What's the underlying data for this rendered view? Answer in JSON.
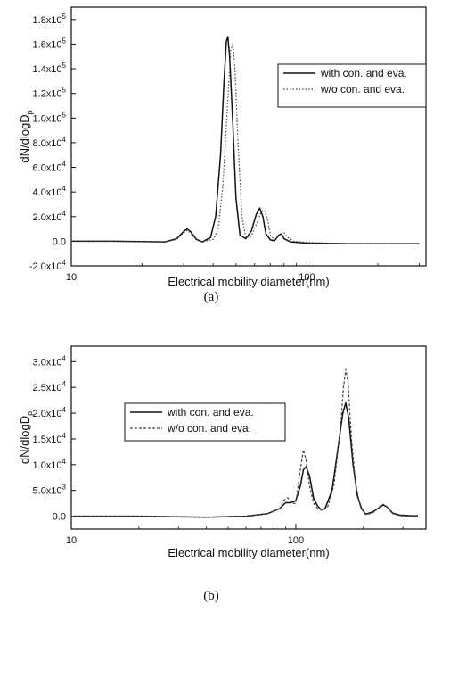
{
  "chart_data": [
    {
      "type": "line",
      "caption": "(a)",
      "xlabel": "Electrical mobility diameter(nm)",
      "ylabel": "dN/dlogD",
      "ylabel_sub": "p",
      "xscale": "log",
      "xlim": [
        10,
        320
      ],
      "ylim": [
        -20000,
        190000
      ],
      "xticks": [
        {
          "value": 10,
          "label": "10"
        },
        {
          "value": 100,
          "label": "100"
        }
      ],
      "yticks": [
        {
          "value": -20000,
          "label": "-2.0x10",
          "exp": "4"
        },
        {
          "value": 0,
          "label": "0.0",
          "exp": ""
        },
        {
          "value": 20000,
          "label": "2.0x10",
          "exp": "4"
        },
        {
          "value": 40000,
          "label": "4.0x10",
          "exp": "4"
        },
        {
          "value": 60000,
          "label": "6.0x10",
          "exp": "4"
        },
        {
          "value": 80000,
          "label": "8.0x10",
          "exp": "4"
        },
        {
          "value": 100000,
          "label": "1.0x10",
          "exp": "5"
        },
        {
          "value": 120000,
          "label": "1.2x10",
          "exp": "5"
        },
        {
          "value": 140000,
          "label": "1.4x10",
          "exp": "5"
        },
        {
          "value": 160000,
          "label": "1.6x10",
          "exp": "5"
        },
        {
          "value": 180000,
          "label": "1.8x10",
          "exp": "5"
        }
      ],
      "legend_position": "upper-right",
      "series": [
        {
          "name": "with con. and eva.",
          "style": "solid",
          "color": "#111111",
          "points": [
            [
              10,
              0
            ],
            [
              15,
              0
            ],
            [
              20,
              -300
            ],
            [
              25,
              -500
            ],
            [
              28,
              2000
            ],
            [
              30,
              8000
            ],
            [
              31,
              10000
            ],
            [
              32,
              8000
            ],
            [
              34,
              1500
            ],
            [
              36,
              -500
            ],
            [
              39,
              3000
            ],
            [
              41,
              20000
            ],
            [
              43,
              70000
            ],
            [
              44.5,
              130000
            ],
            [
              45.5,
              162000
            ],
            [
              46.2,
              166000
            ],
            [
              47,
              150000
            ],
            [
              48.5,
              95000
            ],
            [
              50,
              35000
            ],
            [
              52,
              5000
            ],
            [
              55,
              2000
            ],
            [
              58,
              8000
            ],
            [
              61,
              22000
            ],
            [
              63,
              27000
            ],
            [
              65,
              20000
            ],
            [
              67,
              6000
            ],
            [
              70,
              1000
            ],
            [
              73,
              500
            ],
            [
              76,
              5000
            ],
            [
              78,
              6000
            ],
            [
              80,
              2000
            ],
            [
              85,
              -500
            ],
            [
              100,
              -1500
            ],
            [
              150,
              -2000
            ],
            [
              200,
              -2000
            ],
            [
              300,
              -2000
            ]
          ]
        },
        {
          "name": "w/o con. and eva.",
          "style": "dotted",
          "color": "#444444",
          "points": [
            [
              10,
              0
            ],
            [
              15,
              0
            ],
            [
              20,
              -300
            ],
            [
              25,
              -500
            ],
            [
              28,
              1500
            ],
            [
              30,
              7000
            ],
            [
              31,
              9000
            ],
            [
              32,
              7000
            ],
            [
              34,
              1000
            ],
            [
              36,
              -500
            ],
            [
              40,
              1500
            ],
            [
              42,
              10000
            ],
            [
              44,
              45000
            ],
            [
              46,
              110000
            ],
            [
              47.5,
              155000
            ],
            [
              48.5,
              160000
            ],
            [
              49.5,
              140000
            ],
            [
              51,
              80000
            ],
            [
              53,
              20000
            ],
            [
              55,
              3000
            ],
            [
              58,
              4000
            ],
            [
              61,
              14000
            ],
            [
              64,
              24000
            ],
            [
              66,
              25000
            ],
            [
              68,
              18000
            ],
            [
              70,
              5000
            ],
            [
              73,
              1000
            ],
            [
              77,
              5000
            ],
            [
              80,
              7000
            ],
            [
              83,
              3000
            ],
            [
              88,
              0
            ],
            [
              100,
              -1000
            ],
            [
              150,
              -2000
            ],
            [
              200,
              -2000
            ],
            [
              300,
              -2000
            ]
          ]
        }
      ]
    },
    {
      "type": "line",
      "caption": "(b)",
      "xlabel": "Electrical mobility diameter(nm)",
      "ylabel": "dN/dlogD",
      "ylabel_sub": "p",
      "xscale": "log",
      "xlim": [
        10,
        380
      ],
      "ylim": [
        -2500,
        33000
      ],
      "xticks": [
        {
          "value": 10,
          "label": "10"
        },
        {
          "value": 100,
          "label": "100"
        }
      ],
      "yticks": [
        {
          "value": 0,
          "label": "0.0",
          "exp": ""
        },
        {
          "value": 5000,
          "label": "5.0x10",
          "exp": "3"
        },
        {
          "value": 10000,
          "label": "1.0x10",
          "exp": "4"
        },
        {
          "value": 15000,
          "label": "1.5x10",
          "exp": "4"
        },
        {
          "value": 20000,
          "label": "2.0x10",
          "exp": "4"
        },
        {
          "value": 25000,
          "label": "2.5x10",
          "exp": "4"
        },
        {
          "value": 30000,
          "label": "3.0x10",
          "exp": "4"
        }
      ],
      "legend_position": "upper-left",
      "series": [
        {
          "name": "with con. and eva.",
          "style": "solid",
          "color": "#111111",
          "points": [
            [
              10,
              0
            ],
            [
              20,
              0
            ],
            [
              40,
              -200
            ],
            [
              60,
              0
            ],
            [
              75,
              500
            ],
            [
              85,
              1500
            ],
            [
              90,
              2600
            ],
            [
              95,
              2600
            ],
            [
              100,
              3000
            ],
            [
              105,
              6000
            ],
            [
              108,
              9000
            ],
            [
              111,
              9600
            ],
            [
              115,
              8000
            ],
            [
              120,
              3500
            ],
            [
              125,
              2000
            ],
            [
              130,
              1200
            ],
            [
              135,
              1500
            ],
            [
              145,
              5000
            ],
            [
              155,
              14000
            ],
            [
              162,
              20000
            ],
            [
              167,
              22000
            ],
            [
              172,
              19000
            ],
            [
              180,
              10000
            ],
            [
              188,
              4000
            ],
            [
              196,
              1500
            ],
            [
              205,
              400
            ],
            [
              220,
              800
            ],
            [
              235,
              1600
            ],
            [
              245,
              2200
            ],
            [
              255,
              1800
            ],
            [
              270,
              600
            ],
            [
              290,
              200
            ],
            [
              320,
              100
            ],
            [
              350,
              50
            ]
          ]
        },
        {
          "name": "w/o con. and eva.",
          "style": "dashed",
          "color": "#444444",
          "points": [
            [
              10,
              0
            ],
            [
              20,
              0
            ],
            [
              40,
              -200
            ],
            [
              60,
              0
            ],
            [
              75,
              500
            ],
            [
              85,
              1500
            ],
            [
              88,
              3000
            ],
            [
              92,
              3600
            ],
            [
              96,
              2500
            ],
            [
              100,
              2500
            ],
            [
              104,
              8000
            ],
            [
              108,
              12900
            ],
            [
              111,
              11000
            ],
            [
              115,
              6000
            ],
            [
              120,
              2500
            ],
            [
              125,
              1500
            ],
            [
              130,
              1200
            ],
            [
              138,
              1500
            ],
            [
              148,
              6000
            ],
            [
              158,
              17000
            ],
            [
              163,
              25000
            ],
            [
              167,
              28500
            ],
            [
              171,
              26000
            ],
            [
              177,
              15000
            ],
            [
              185,
              6000
            ],
            [
              195,
              1500
            ],
            [
              205,
              300
            ],
            [
              220,
              600
            ],
            [
              235,
              1800
            ],
            [
              245,
              2300
            ],
            [
              255,
              1800
            ],
            [
              270,
              500
            ],
            [
              290,
              100
            ],
            [
              320,
              0
            ],
            [
              350,
              0
            ]
          ]
        }
      ]
    }
  ]
}
